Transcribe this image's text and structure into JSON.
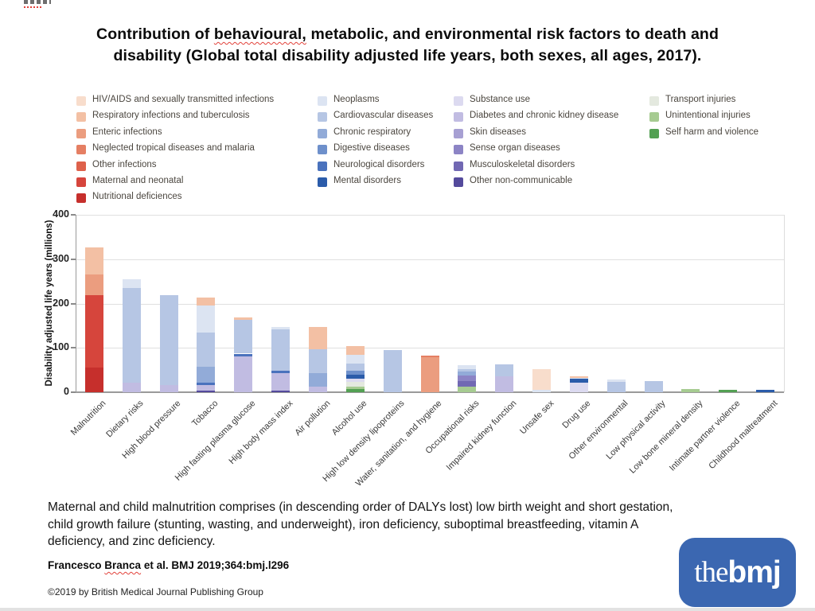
{
  "title": {
    "line1_pre": "Contribution of ",
    "line1_flagged": "behavioural,",
    "line1_post": " metabolic, and environmental risk factors to death and",
    "line2": "disability (Global total disability adjusted life years, both sexes, all ages, 2017)."
  },
  "legend": {
    "groups": [
      {
        "name": "communicable-maternal-nutritional",
        "items": [
          {
            "label": "HIV/AIDS and sexually transmitted infections",
            "color": "#f8ddcc"
          },
          {
            "label": "Respiratory infections and tuberculosis",
            "color": "#f3c0a4"
          },
          {
            "label": "Enteric infections",
            "color": "#eb9d7f"
          },
          {
            "label": "Neglected tropical diseases and malaria",
            "color": "#e57f63"
          },
          {
            "label": "Other infections",
            "color": "#de614b"
          },
          {
            "label": "Maternal and neonatal",
            "color": "#d6453c"
          },
          {
            "label": "Nutritional deficiences",
            "color": "#c62f2c"
          }
        ]
      },
      {
        "name": "non-communicable-blue",
        "items": [
          {
            "label": "Neoplasms",
            "color": "#dce4f2"
          },
          {
            "label": "Cardiovascular diseases",
            "color": "#b6c6e4"
          },
          {
            "label": "Chronic respiratory",
            "color": "#92abd8"
          },
          {
            "label": "Digestive diseases",
            "color": "#6e90cb"
          },
          {
            "label": "Neurological disorders",
            "color": "#4a72bd"
          },
          {
            "label": "Mental disorders",
            "color": "#2b5caa"
          }
        ]
      },
      {
        "name": "non-communicable-purple",
        "items": [
          {
            "label": "Substance use",
            "color": "#dcdaf0"
          },
          {
            "label": "Diabetes and chronic kidney disease",
            "color": "#c1bce2"
          },
          {
            "label": "Skin diseases",
            "color": "#a7a0d3"
          },
          {
            "label": "Sense organ diseases",
            "color": "#8c84c5"
          },
          {
            "label": "Musculoskeletal disorders",
            "color": "#7168b3"
          },
          {
            "label": "Other non-communicable",
            "color": "#544a9c"
          }
        ]
      },
      {
        "name": "injuries-green",
        "items": [
          {
            "label": "Transport injuries",
            "color": "#e4e9df"
          },
          {
            "label": "Unintentional injuries",
            "color": "#a6cb91"
          },
          {
            "label": "Self harm and violence",
            "color": "#53a053"
          }
        ]
      }
    ]
  },
  "chart_data": {
    "type": "bar",
    "stacked": true,
    "ylabel": "Disability adjusted life years (millions)",
    "ylim": [
      0,
      400
    ],
    "yticks": [
      0,
      100,
      200,
      300,
      400
    ],
    "grid": true,
    "legend_position": "top",
    "categories": [
      "Malnutrition",
      "Dietary risks",
      "High blood pressure",
      "Tobacco",
      "High fasting plasma glucose",
      "High body mass index",
      "Air pollution",
      "Alcohol use",
      "High low density lipoproteins",
      "Water, sanitation, and hygiene",
      "Occupational risks",
      "Impaired kidney function",
      "Unsafe sex",
      "Drug use",
      "Other environmental",
      "Low physical activity",
      "Low bone mineral density",
      "Intimate partner violence",
      "Childhood maltreatment"
    ],
    "bars": [
      {
        "category": "Malnutrition",
        "total": 327,
        "segments": [
          {
            "label": "Nutritional deficiences",
            "value": 55
          },
          {
            "label": "Maternal and neonatal",
            "value": 163
          },
          {
            "label": "Enteric infections",
            "value": 48
          },
          {
            "label": "Respiratory infections and tuberculosis",
            "value": 61
          }
        ]
      },
      {
        "category": "Dietary risks",
        "total": 255,
        "segments": [
          {
            "label": "Diabetes and chronic kidney disease",
            "value": 22
          },
          {
            "label": "Cardiovascular diseases",
            "value": 213
          },
          {
            "label": "Neoplasms",
            "value": 20
          }
        ]
      },
      {
        "category": "High blood pressure",
        "total": 218,
        "segments": [
          {
            "label": "Diabetes and chronic kidney disease",
            "value": 17
          },
          {
            "label": "Cardiovascular diseases",
            "value": 201
          }
        ]
      },
      {
        "category": "Tobacco",
        "total": 213,
        "segments": [
          {
            "label": "Other non-communicable",
            "value": 4
          },
          {
            "label": "Diabetes and chronic kidney disease",
            "value": 12
          },
          {
            "label": "Neurological disorders",
            "value": 5
          },
          {
            "label": "Chronic respiratory",
            "value": 37
          },
          {
            "label": "Cardiovascular diseases",
            "value": 77
          },
          {
            "label": "Neoplasms",
            "value": 61
          },
          {
            "label": "Respiratory infections and tuberculosis",
            "value": 17
          }
        ]
      },
      {
        "category": "High fasting plasma glucose",
        "total": 169,
        "segments": [
          {
            "label": "Diabetes and chronic kidney disease",
            "value": 81
          },
          {
            "label": "Neurological disorders",
            "value": 6
          },
          {
            "label": "Cardiovascular diseases",
            "value": 76
          },
          {
            "label": "Respiratory infections and tuberculosis",
            "value": 6
          }
        ]
      },
      {
        "category": "High body mass index",
        "total": 148,
        "segments": [
          {
            "label": "Other non-communicable",
            "value": 4
          },
          {
            "label": "Diabetes and chronic kidney disease",
            "value": 39
          },
          {
            "label": "Neurological disorders",
            "value": 5
          },
          {
            "label": "Cardiovascular diseases",
            "value": 94
          },
          {
            "label": "Neoplasms",
            "value": 6
          }
        ]
      },
      {
        "category": "Air pollution",
        "total": 147,
        "segments": [
          {
            "label": "Diabetes and chronic kidney disease",
            "value": 13
          },
          {
            "label": "Chronic respiratory",
            "value": 30
          },
          {
            "label": "Cardiovascular diseases",
            "value": 54
          },
          {
            "label": "Respiratory infections and tuberculosis",
            "value": 50
          }
        ]
      },
      {
        "category": "Alcohol use",
        "total": 104,
        "segments": [
          {
            "label": "Self harm and violence",
            "value": 8
          },
          {
            "label": "Unintentional injuries",
            "value": 4
          },
          {
            "label": "Transport injuries",
            "value": 12
          },
          {
            "label": "Substance use",
            "value": 6
          },
          {
            "label": "Mental disorders",
            "value": 9
          },
          {
            "label": "Digestive diseases",
            "value": 9
          },
          {
            "label": "Cardiovascular diseases",
            "value": 16
          },
          {
            "label": "Neoplasms",
            "value": 20
          },
          {
            "label": "Respiratory infections and tuberculosis",
            "value": 20
          }
        ]
      },
      {
        "category": "High low density lipoproteins",
        "total": 95,
        "segments": [
          {
            "label": "Cardiovascular diseases",
            "value": 95
          }
        ]
      },
      {
        "category": "Water, sanitation, and hygiene",
        "total": 82,
        "segments": [
          {
            "label": "Enteric infections",
            "value": 78
          },
          {
            "label": "Neglected tropical diseases and malaria",
            "value": 4
          }
        ]
      },
      {
        "category": "Occupational risks",
        "total": 61,
        "segments": [
          {
            "label": "Unintentional injuries",
            "value": 12
          },
          {
            "label": "Musculoskeletal disorders",
            "value": 14
          },
          {
            "label": "Sense organ diseases",
            "value": 12
          },
          {
            "label": "Chronic respiratory",
            "value": 8
          },
          {
            "label": "Cardiovascular diseases",
            "value": 7
          },
          {
            "label": "Neoplasms",
            "value": 8
          }
        ]
      },
      {
        "category": "Impaired kidney function",
        "total": 62,
        "segments": [
          {
            "label": "Diabetes and chronic kidney disease",
            "value": 35
          },
          {
            "label": "Cardiovascular diseases",
            "value": 27
          }
        ]
      },
      {
        "category": "Unsafe sex",
        "total": 52,
        "segments": [
          {
            "label": "Neoplasms",
            "value": 5
          },
          {
            "label": "HIV/AIDS and sexually transmitted infections",
            "value": 47
          }
        ]
      },
      {
        "category": "Drug use",
        "total": 36,
        "segments": [
          {
            "label": "Substance use",
            "value": 22
          },
          {
            "label": "Mental disorders",
            "value": 8
          },
          {
            "label": "Neoplasms",
            "value": 3
          },
          {
            "label": "Respiratory infections and tuberculosis",
            "value": 3
          }
        ]
      },
      {
        "category": "Other environmental",
        "total": 28,
        "segments": [
          {
            "label": "Cardiovascular diseases",
            "value": 24
          },
          {
            "label": "Neoplasms",
            "value": 4
          }
        ]
      },
      {
        "category": "Low physical activity",
        "total": 25,
        "segments": [
          {
            "label": "Cardiovascular diseases",
            "value": 25
          }
        ]
      },
      {
        "category": "Low bone mineral density",
        "total": 8,
        "segments": [
          {
            "label": "Unintentional injuries",
            "value": 8
          }
        ]
      },
      {
        "category": "Intimate partner violence",
        "total": 5,
        "segments": [
          {
            "label": "Self harm and violence",
            "value": 5
          }
        ]
      },
      {
        "category": "Childhood maltreatment",
        "total": 5,
        "segments": [
          {
            "label": "Mental disorders",
            "value": 5
          }
        ]
      }
    ]
  },
  "caption": {
    "lines": [
      "Maternal and child malnutrition comprises (in descending order of DALYs lost) low birth weight and short gestation,",
      "child growth failure (stunting, wasting, and underweight), iron deficiency, suboptimal breastfeeding, vitamin A",
      "deficiency, and zinc deficiency."
    ]
  },
  "citation": {
    "pre": "Francesco ",
    "flagged": "Branca",
    "post": " et al. BMJ 2019;364:bmj.l296"
  },
  "copyright": "©2019 by British Medical Journal Publishing Group",
  "logo": {
    "the": "the",
    "bmj": "bmj",
    "color": "#3b67b1"
  }
}
